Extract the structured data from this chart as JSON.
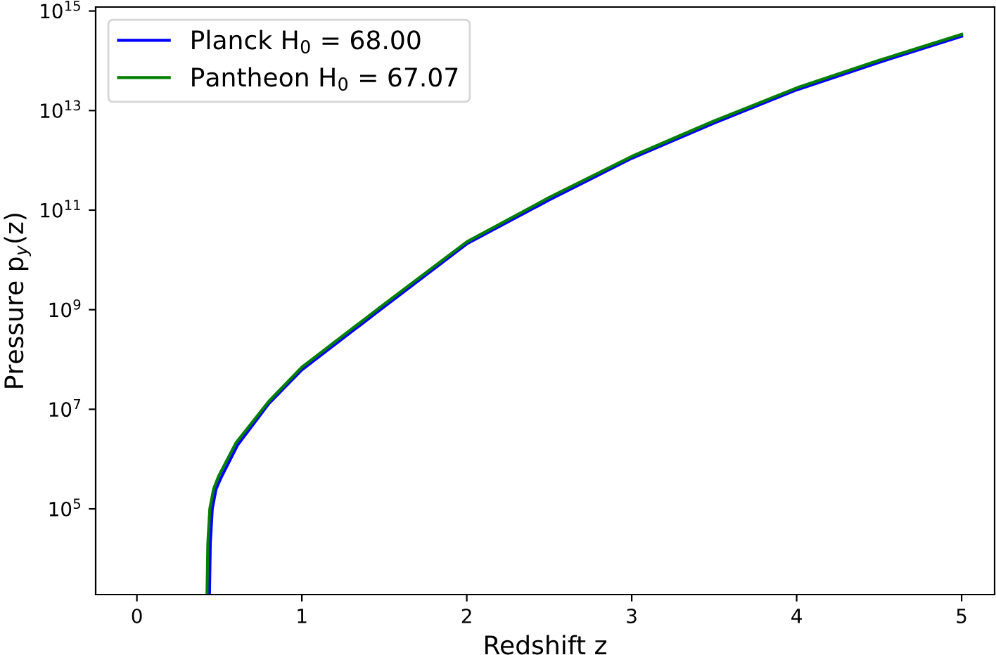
{
  "chart_data": {
    "type": "line",
    "xlabel": "Redshift z",
    "ylabel": "Pressure p$_{y}$(z)",
    "log": "y",
    "grid": false,
    "legend": "top left",
    "marker": "none",
    "line_style": "solid",
    "xlim": [
      -0.25,
      5.2
    ],
    "xticks": [
      0,
      1,
      2,
      3,
      4,
      5
    ],
    "ylim": [
      1900,
      1200000000000000.0
    ],
    "yticks": [
      {
        "value": 100000.0,
        "label": "10$^{5}$"
      },
      {
        "value": 10000000.0,
        "label": "10$^{7}$"
      },
      {
        "value": 1000000000.0,
        "label": "10$^{9}$"
      },
      {
        "value": 100000000000.0,
        "label": "10$^{11}$"
      },
      {
        "value": 10000000000000.0,
        "label": "10$^{13}$"
      },
      {
        "value": 1000000000000000.0,
        "label": "10$^{15}$"
      }
    ],
    "series": [
      {
        "name": "Planck H$_{0}$ = 68.00",
        "color": "#0000ff",
        "x": [
          0.44,
          0.445,
          0.457,
          0.48,
          0.51,
          0.61,
          0.8,
          1,
          1.5,
          2,
          2.5,
          3,
          3.5,
          4,
          4.5,
          5
        ],
        "values": [
          1900,
          20000.0,
          100000.0,
          250000.0,
          420000.0,
          1900000.0,
          13000000.0,
          62000000.0,
          1150000000.0,
          21000000000.0,
          160000000000.0,
          1100000000000.0,
          5600000000000.0,
          26000000000000.0,
          93000000000000.0,
          310000000000000.0
        ]
      },
      {
        "name": "Pantheon H$_{0}$ = 67.07",
        "color": "#008000",
        "x": [
          0.425,
          0.43,
          0.442,
          0.465,
          0.495,
          0.6,
          0.8,
          1,
          1.5,
          2,
          2.5,
          3,
          3.5,
          4,
          4.5,
          5
        ],
        "values": [
          1900,
          20000.0,
          100000.0,
          250000.0,
          450000.0,
          2100000.0,
          14500000.0,
          70000000.0,
          1300000000.0,
          23000000000.0,
          180000000000.0,
          1200000000000.0,
          6200000000000.0,
          28500000000000.0,
          102000000000000.0,
          340000000000000.0
        ]
      }
    ]
  }
}
